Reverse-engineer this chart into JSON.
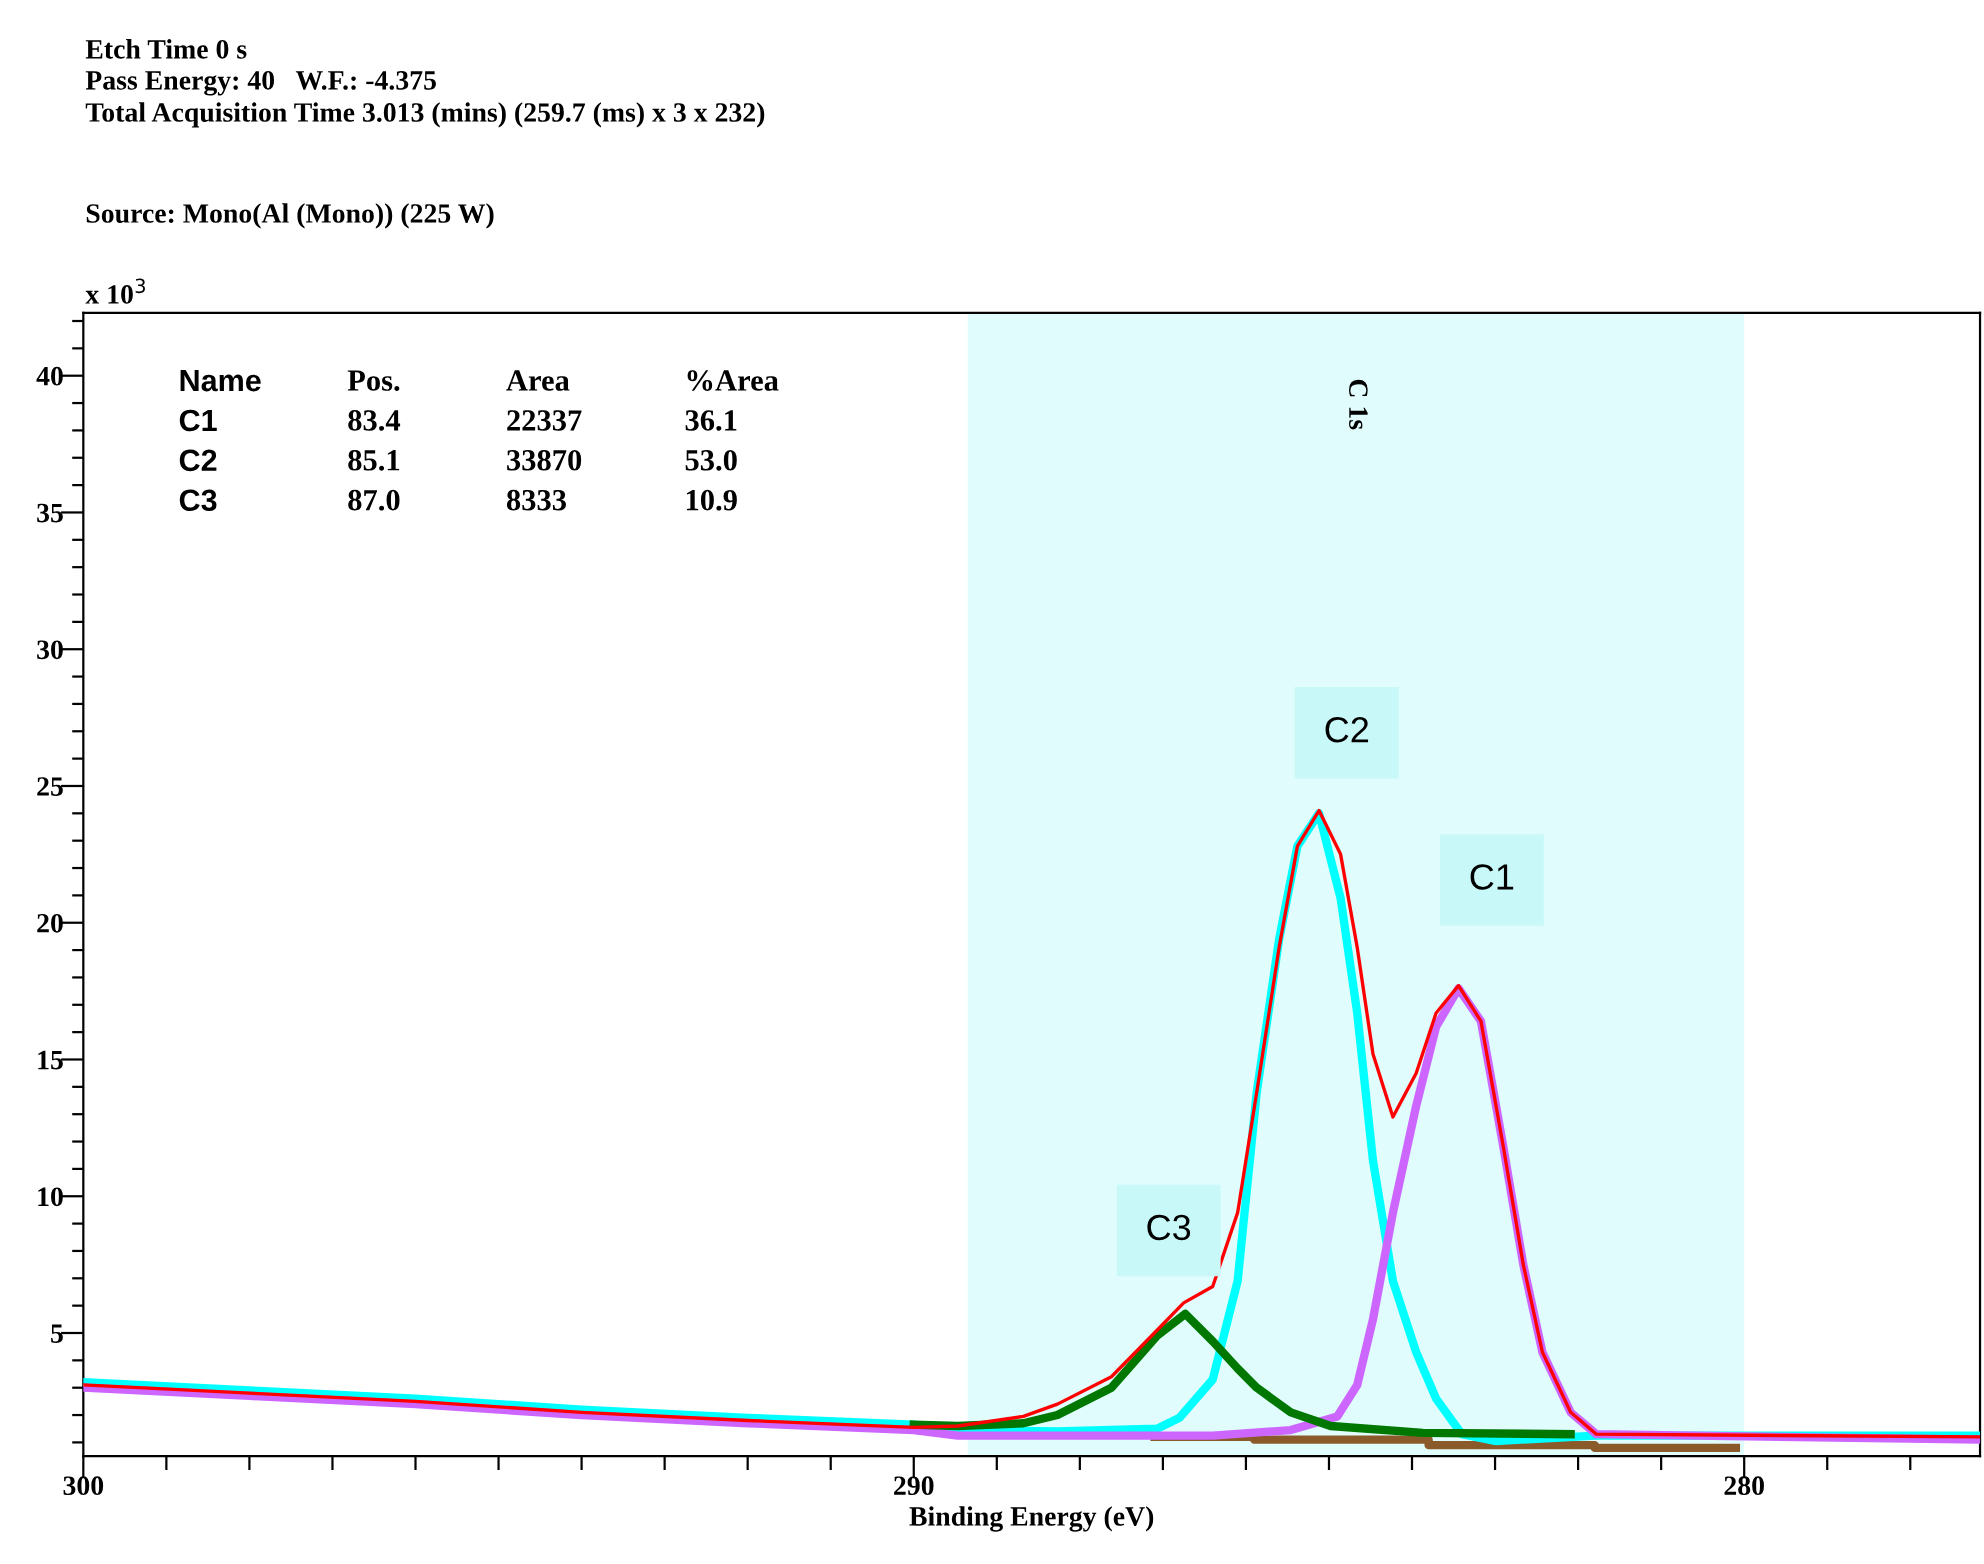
{
  "chart_data": {
    "type": "line",
    "title": "Etch Time 0 s",
    "subtitle": "Pass Energy: 40   W.F.: -4.375\nTotal Acquisition Time 3.013 (mins) (259.7 (ms) x 3 x 232)",
    "xlabel": "Binding Energy (eV)",
    "xlim": [
      300,
      277.16
    ],
    "ylim": [
      0.5,
      42.3
    ],
    "xticks": [
      300,
      {
        "value": 299,
        "label": null
      },
      {
        "value": 298,
        "label": null
      },
      {
        "value": 297,
        "label": null
      },
      {
        "value": 296,
        "label": null
      },
      {
        "value": 295,
        "label": null
      },
      {
        "value": 294,
        "label": null
      },
      {
        "value": 293,
        "label": null
      },
      {
        "value": 292,
        "label": null
      },
      {
        "value": 291,
        "label": null
      },
      290,
      {
        "value": 289,
        "label": null
      },
      {
        "value": 288,
        "label": null
      },
      {
        "value": 287,
        "label": null
      },
      {
        "value": 286,
        "label": null
      },
      {
        "value": 285,
        "label": null
      },
      {
        "value": 284,
        "label": null
      },
      {
        "value": 283,
        "label": null
      },
      {
        "value": 282,
        "label": null
      },
      {
        "value": 281,
        "label": null
      },
      280,
      {
        "value": 279,
        "label": null
      },
      {
        "value": 278,
        "label": null
      }
    ],
    "yticks": [
      {
        "value": 1,
        "label": null
      },
      {
        "value": 2,
        "label": null
      },
      {
        "value": 3,
        "label": null
      },
      {
        "value": 4,
        "label": null
      },
      5,
      {
        "value": 6,
        "label": null
      },
      {
        "value": 7,
        "label": null
      },
      {
        "value": 8,
        "label": null
      },
      {
        "value": 9,
        "label": null
      },
      10,
      {
        "value": 11,
        "label": null
      },
      {
        "value": 12,
        "label": null
      },
      {
        "value": 13,
        "label": null
      },
      {
        "value": 14,
        "label": null
      },
      15,
      {
        "value": 16,
        "label": null
      },
      {
        "value": 17,
        "label": null
      },
      {
        "value": 18,
        "label": null
      },
      {
        "value": 19,
        "label": null
      },
      20,
      {
        "value": 21,
        "label": null
      },
      {
        "value": 22,
        "label": null
      },
      {
        "value": 23,
        "label": null
      },
      {
        "value": 24,
        "label": null
      },
      25,
      {
        "value": 26,
        "label": null
      },
      {
        "value": 27,
        "label": null
      },
      {
        "value": 28,
        "label": null
      },
      {
        "value": 29,
        "label": null
      },
      30,
      {
        "value": 31,
        "label": null
      },
      {
        "value": 32,
        "label": null
      },
      {
        "value": 33,
        "label": null
      },
      {
        "value": 34,
        "label": null
      },
      35,
      {
        "value": 36,
        "label": null
      },
      {
        "value": 37,
        "label": null
      },
      {
        "value": 38,
        "label": null
      },
      {
        "value": 39,
        "label": null
      },
      40,
      {
        "value": 41,
        "label": null
      },
      {
        "value": 42,
        "label": null
      }
    ],
    "grid": false,
    "legend": false,
    "marker": "none",
    "line_style": "solid",
    "bands": [
      {
        "axis": "x",
        "from": 289.35,
        "to": 280.0,
        "label": "C 1s",
        "color": "#e0fcfc"
      }
    ],
    "series": [
      {
        "color": "#8b5a2b",
        "x": [
          287.1,
          285.9,
          285.9,
          283.8,
          283.8,
          281.8,
          281.8,
          280.1
        ],
        "values": [
          1.2,
          1.2,
          1.1,
          1.1,
          0.9,
          0.9,
          0.8,
          0.8
        ]
      },
      {
        "color": "#00ffff",
        "x": [
          300,
          298,
          296,
          294,
          292,
          290,
          289.47,
          288.27,
          287.07,
          286.8,
          286.4,
          286.1,
          285.87,
          285.6,
          285.38,
          285.12,
          284.86,
          284.66,
          284.47,
          284.23,
          283.95,
          283.71,
          283.4,
          283.0,
          281.78,
          277.16
        ],
        "values": [
          3.2,
          2.9,
          2.6,
          2.2,
          1.9,
          1.65,
          1.45,
          1.4,
          1.5,
          1.9,
          3.3,
          6.9,
          13.8,
          19.4,
          22.8,
          24.0,
          20.9,
          16.7,
          11.3,
          6.9,
          4.3,
          2.6,
          1.3,
          1.05,
          1.25,
          1.25
        ]
      },
      {
        "color": "#cc66ff",
        "x": [
          300,
          298,
          296,
          294,
          292,
          290,
          289.47,
          286.4,
          285.46,
          284.9,
          284.66,
          284.47,
          284.23,
          283.95,
          283.71,
          283.44,
          283.17,
          282.9,
          282.66,
          282.43,
          282.09,
          281.78,
          277.16
        ],
        "values": [
          3.0,
          2.7,
          2.4,
          2.0,
          1.7,
          1.45,
          1.25,
          1.25,
          1.45,
          1.95,
          3.1,
          5.5,
          9.4,
          13.3,
          16.2,
          17.6,
          16.4,
          11.8,
          7.5,
          4.3,
          2.1,
          1.3,
          1.1
        ]
      },
      {
        "color": "#007700",
        "x": [
          290,
          289.47,
          288.68,
          288.27,
          287.62,
          287.07,
          286.73,
          286.4,
          286.1,
          285.87,
          285.46,
          284.98,
          283.87,
          282.09
        ],
        "values": [
          1.65,
          1.6,
          1.7,
          2.0,
          3.0,
          4.9,
          5.7,
          4.7,
          3.7,
          3.0,
          2.1,
          1.6,
          1.35,
          1.3
        ]
      },
      {
        "color": "#ff0000",
        "x": [
          300,
          298,
          296,
          294,
          292,
          290,
          289.47,
          288.68,
          288.27,
          287.62,
          287.07,
          286.75,
          286.4,
          286.1,
          285.87,
          285.6,
          285.38,
          285.12,
          284.86,
          284.66,
          284.47,
          284.23,
          283.95,
          283.71,
          283.44,
          283.17,
          282.9,
          282.66,
          282.43,
          282.09,
          281.78,
          277.16
        ],
        "values": [
          3.1,
          2.8,
          2.5,
          2.1,
          1.8,
          1.55,
          1.6,
          1.95,
          2.4,
          3.4,
          5.1,
          6.1,
          6.7,
          9.4,
          13.8,
          19.1,
          22.8,
          24.1,
          22.5,
          19.1,
          15.2,
          12.9,
          14.5,
          16.7,
          17.7,
          16.4,
          11.8,
          7.5,
          4.3,
          2.1,
          1.3,
          1.2
        ]
      }
    ],
    "annotations": [
      "x 10$^{3}$",
      "Source: Mono(Al (Mono)) (225 W)",
      "Name",
      "Pos.",
      "Area",
      "%Area",
      "C1",
      "83.4",
      "22337",
      "36.1",
      "C2",
      "85.1",
      "33870",
      "53.0",
      "C3",
      "87.0",
      "8333",
      "10.9",
      {
        "text": "C2",
        "x": 285.12,
        "y": 24.1
      },
      {
        "text": "C1",
        "x": 283.44,
        "y": 17.7
      },
      {
        "text": "C3",
        "x": 286.73,
        "y": 5.7
      }
    ]
  }
}
